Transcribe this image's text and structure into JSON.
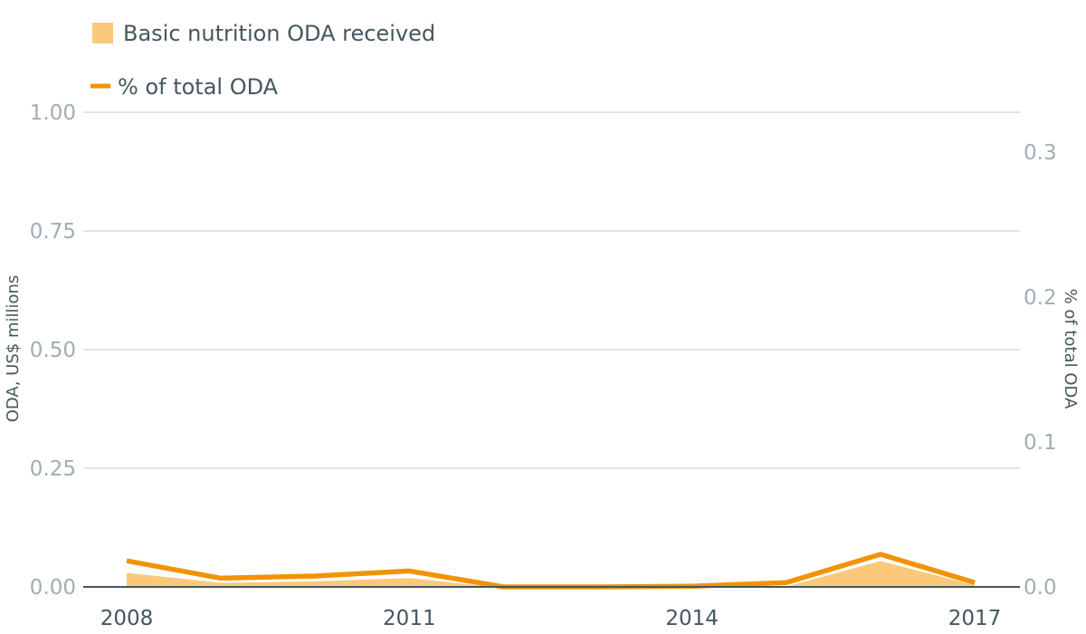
{
  "chart_data": {
    "type": "area",
    "title": "",
    "years": [
      2008,
      2009,
      2010,
      2011,
      2012,
      2013,
      2014,
      2015,
      2016,
      2017
    ],
    "x_tick_labels": [
      "2008",
      "2011",
      "2014",
      "2017"
    ],
    "y_left": {
      "label": "ODA, US$ millions",
      "range": [
        0,
        1
      ],
      "ticks": [
        0,
        0.25,
        0.5,
        0.75,
        1
      ],
      "tick_labels": [
        "0.00",
        "0.25",
        "0.50",
        "0.75",
        "1.00"
      ]
    },
    "y_right": {
      "label": "% of total ODA",
      "range": [
        0,
        0.3
      ],
      "ticks": [
        0,
        0.1,
        0.2,
        0.3
      ],
      "tick_labels": [
        "0.0",
        "0.1",
        "0.2",
        "0.3"
      ]
    },
    "series": [
      {
        "name": "Basic nutrition ODA received",
        "type": "area",
        "axis": "left",
        "color": "#fcc87a",
        "values": [
          0.032,
          0.011,
          0.014,
          0.021,
          0.0,
          0.0,
          0.0,
          0.003,
          0.057,
          0.006
        ]
      },
      {
        "name": "% of total ODA",
        "type": "line",
        "axis": "right",
        "color": "#f29305",
        "values": [
          0.018,
          0.006,
          0.0075,
          0.011,
          0.0,
          0.0,
          0.0005,
          0.003,
          0.0225,
          0.003
        ]
      }
    ],
    "grid": true,
    "legend_position": "top-left"
  },
  "legend": {
    "area_label": "Basic nutrition ODA received",
    "line_label": "% of total ODA"
  },
  "colors": {
    "area": "#fcc87a",
    "line": "#f29305",
    "grid": "#cfd4d6",
    "baseline": "#44575f",
    "tick_muted": "#a0aeb3",
    "text_dark": "#44575f"
  }
}
